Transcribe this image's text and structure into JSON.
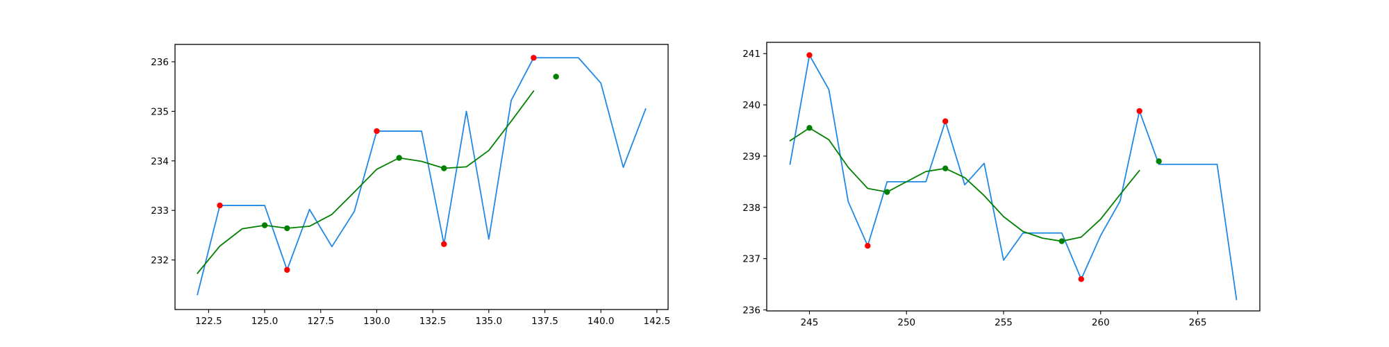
{
  "chart_data": [
    {
      "type": "line",
      "title": "",
      "xlabel": "",
      "ylabel": "",
      "xlim": [
        121.0,
        143.0
      ],
      "ylim": [
        231.0,
        236.35
      ],
      "xticks": [
        122.5,
        125.0,
        127.5,
        130.0,
        132.5,
        135.0,
        137.5,
        140.0,
        142.5
      ],
      "xtick_labels": [
        "122.5",
        "125.0",
        "127.5",
        "130.0",
        "132.5",
        "135.0",
        "137.5",
        "140.0",
        "142.5"
      ],
      "yticks": [
        232,
        233,
        234,
        235,
        236
      ],
      "ytick_labels": [
        "232",
        "233",
        "234",
        "235",
        "236"
      ],
      "grid": false,
      "series": [
        {
          "kind": "line",
          "color": "#1e88e5",
          "x": [
            122,
            123,
            124,
            125,
            126,
            127,
            128,
            129,
            130,
            131,
            132,
            133,
            134,
            135,
            136,
            137,
            138,
            139,
            140,
            141,
            142
          ],
          "y": [
            231.3,
            233.1,
            233.1,
            233.1,
            231.8,
            233.02,
            232.27,
            232.98,
            234.6,
            234.6,
            234.6,
            232.32,
            235.0,
            232.42,
            235.22,
            236.08,
            236.08,
            236.08,
            235.57,
            233.87,
            235.05
          ]
        },
        {
          "kind": "line",
          "color": "#008000",
          "x": [
            122,
            123,
            124,
            125,
            126,
            127,
            128,
            129,
            130,
            131,
            132,
            133,
            134,
            135,
            136,
            137
          ],
          "y": [
            231.73,
            232.28,
            232.63,
            232.7,
            232.64,
            232.68,
            232.92,
            233.37,
            233.83,
            234.06,
            233.99,
            233.85,
            233.88,
            234.21,
            234.8,
            235.41
          ]
        },
        {
          "kind": "scatter",
          "color": "#ff0000",
          "x": [
            123,
            126,
            130,
            133,
            137
          ],
          "y": [
            233.1,
            231.8,
            234.6,
            232.32,
            236.08
          ]
        },
        {
          "kind": "scatter",
          "color": "#008000",
          "x": [
            125,
            126,
            131,
            133,
            138
          ],
          "y": [
            232.7,
            232.64,
            234.06,
            233.85,
            235.7
          ]
        }
      ]
    },
    {
      "type": "line",
      "title": "",
      "xlabel": "",
      "ylabel": "",
      "xlim": [
        242.8,
        268.2
      ],
      "ylim": [
        235.98,
        241.22
      ],
      "xticks": [
        245,
        250,
        255,
        260,
        265
      ],
      "xtick_labels": [
        "245",
        "250",
        "255",
        "260",
        "265"
      ],
      "yticks": [
        236,
        237,
        238,
        239,
        240,
        241
      ],
      "ytick_labels": [
        "236",
        "237",
        "238",
        "239",
        "240",
        "241"
      ],
      "grid": false,
      "series": [
        {
          "kind": "line",
          "color": "#1e88e5",
          "x": [
            244,
            245,
            246,
            247,
            248,
            249,
            250,
            251,
            252,
            253,
            254,
            255,
            256,
            257,
            258,
            259,
            260,
            261,
            262,
            263,
            264,
            265,
            266,
            267
          ],
          "y": [
            238.84,
            240.97,
            240.3,
            238.11,
            237.25,
            238.5,
            238.5,
            238.5,
            239.68,
            238.44,
            238.86,
            236.97,
            237.5,
            237.5,
            237.5,
            236.6,
            237.45,
            238.12,
            239.88,
            238.84,
            238.84,
            238.84,
            238.84,
            236.2
          ]
        },
        {
          "kind": "line",
          "color": "#008000",
          "x": [
            244,
            245,
            246,
            247,
            248,
            249,
            250,
            251,
            252,
            253,
            254,
            255,
            256,
            257,
            258,
            259,
            260,
            261,
            262
          ],
          "y": [
            239.3,
            239.55,
            239.32,
            238.78,
            238.37,
            238.3,
            238.5,
            238.7,
            238.76,
            238.58,
            238.23,
            237.82,
            237.53,
            237.4,
            237.34,
            237.42,
            237.77,
            238.25,
            238.72
          ]
        },
        {
          "kind": "scatter",
          "color": "#ff0000",
          "x": [
            245,
            248,
            252,
            259,
            262
          ],
          "y": [
            240.97,
            237.25,
            239.68,
            236.6,
            239.88
          ]
        },
        {
          "kind": "scatter",
          "color": "#008000",
          "x": [
            245,
            249,
            252,
            258,
            263
          ],
          "y": [
            239.55,
            238.3,
            238.76,
            237.34,
            238.9
          ]
        }
      ]
    }
  ]
}
